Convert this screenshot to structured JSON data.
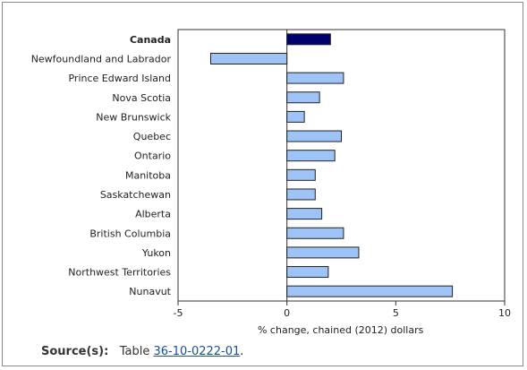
{
  "chart_data": {
    "type": "bar",
    "orientation": "horizontal",
    "categories": [
      "Canada",
      "Newfoundland and Labrador",
      "Prince Edward Island",
      "Nova Scotia",
      "New Brunswick",
      "Quebec",
      "Ontario",
      "Manitoba",
      "Saskatchewan",
      "Alberta",
      "British Columbia",
      "Yukon",
      "Northwest Territories",
      "Nunavut"
    ],
    "values": [
      2.0,
      -3.5,
      2.6,
      1.5,
      0.8,
      2.5,
      2.2,
      1.3,
      1.3,
      1.6,
      2.6,
      3.3,
      1.9,
      7.6
    ],
    "highlight_category": "Canada",
    "xlabel": "% change, chained (2012) dollars",
    "xlim": [
      -5,
      10
    ],
    "xticks": [
      -5,
      0,
      5,
      10
    ],
    "grid": false,
    "legend": "none",
    "colors": {
      "highlight_fill": "#00006e",
      "bar_fill": "#9dc3f7",
      "bar_stroke": "#222222",
      "axis": "#333333"
    }
  },
  "source": {
    "label": "Source(s):",
    "text": "Table",
    "link_text": "36-10-0222-01",
    "trailing": "."
  }
}
